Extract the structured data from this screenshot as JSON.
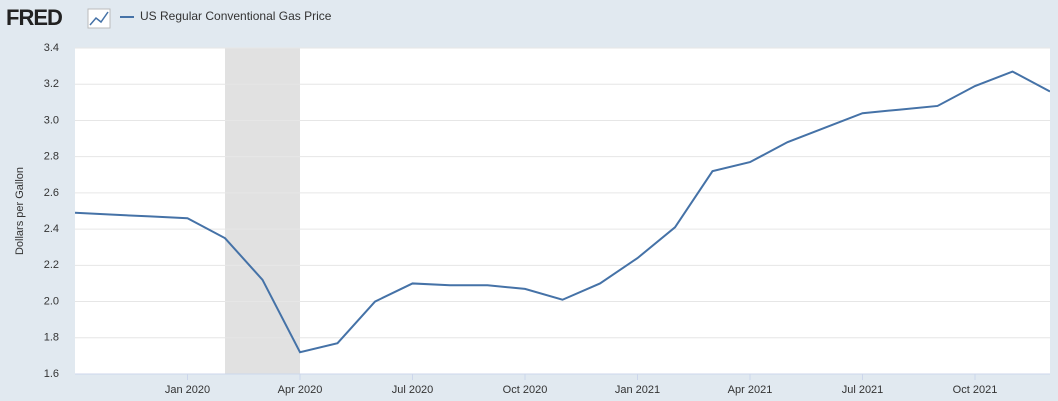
{
  "chart_data": {
    "type": "line",
    "logo": "FRED",
    "y_label": "Dollars per Gallon",
    "x": [
      "2019-10",
      "2019-11",
      "2019-12",
      "2020-01",
      "2020-02",
      "2020-03",
      "2020-04",
      "2020-05",
      "2020-06",
      "2020-07",
      "2020-08",
      "2020-09",
      "2020-10",
      "2020-11",
      "2020-12",
      "2021-01",
      "2021-02",
      "2021-03",
      "2021-04",
      "2021-05",
      "2021-06",
      "2021-07",
      "2021-08",
      "2021-09",
      "2021-10",
      "2021-11",
      "2021-12"
    ],
    "series": [
      {
        "name": "US Regular Conventional Gas Price",
        "color": "#4572a7",
        "values": [
          2.49,
          2.48,
          2.47,
          2.46,
          2.35,
          2.12,
          1.72,
          1.77,
          2.0,
          2.1,
          2.09,
          2.09,
          2.07,
          2.01,
          2.1,
          2.24,
          2.41,
          2.72,
          2.77,
          2.88,
          2.96,
          3.04,
          3.06,
          3.08,
          3.19,
          3.27,
          3.16
        ]
      }
    ],
    "xlim": [
      "2019-10",
      "2021-12"
    ],
    "xticks": [
      {
        "value": "2020-01",
        "label": "Jan 2020"
      },
      {
        "value": "2020-04",
        "label": "Apr 2020"
      },
      {
        "value": "2020-07",
        "label": "Jul 2020"
      },
      {
        "value": "2020-10",
        "label": "Oct 2020"
      },
      {
        "value": "2021-01",
        "label": "Jan 2021"
      },
      {
        "value": "2021-04",
        "label": "Apr 2021"
      },
      {
        "value": "2021-07",
        "label": "Jul 2021"
      },
      {
        "value": "2021-10",
        "label": "Oct 2021"
      }
    ],
    "ylim": [
      1.6,
      3.4
    ],
    "yticks": [
      1.6,
      1.8,
      {
        "value": 2,
        "label": "2.0"
      },
      2.2,
      2.4,
      2.6,
      2.8,
      {
        "value": 3,
        "label": "3.0"
      },
      3.2,
      3.4
    ],
    "recession": [
      "2020-02",
      "2020-04"
    ],
    "grid": true
  }
}
